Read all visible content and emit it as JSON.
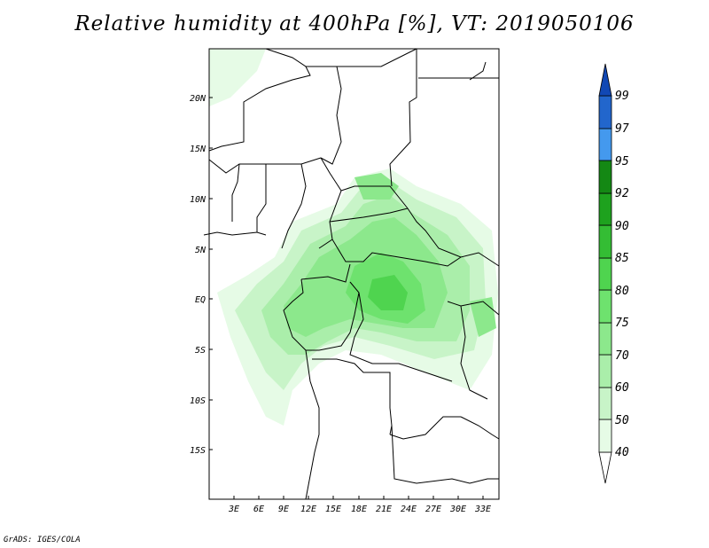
{
  "title": "Relative humidity at 400hPa [%], VT: 2019050106",
  "credit": "GrADS: IGES/COLA",
  "lat_labels": [
    "20N",
    "15N",
    "10N",
    "5N",
    "EQ",
    "5S",
    "10S",
    "15S"
  ],
  "lon_labels": [
    "3E",
    "6E",
    "9E",
    "12E",
    "15E",
    "18E",
    "21E",
    "24E",
    "27E",
    "30E",
    "33E"
  ],
  "colorbar": {
    "levels": [
      "40",
      "50",
      "60",
      "70",
      "75",
      "80",
      "85",
      "90",
      "92",
      "95",
      "97",
      "99"
    ],
    "colors": [
      "#ffffff",
      "#e6fbe6",
      "#c8f4c8",
      "#aaeeaa",
      "#8ce88c",
      "#6ee26e",
      "#4fd44f",
      "#34bd34",
      "#1ea21e",
      "#148814",
      "#4499ee",
      "#2266cc",
      "#1148b4"
    ]
  }
}
